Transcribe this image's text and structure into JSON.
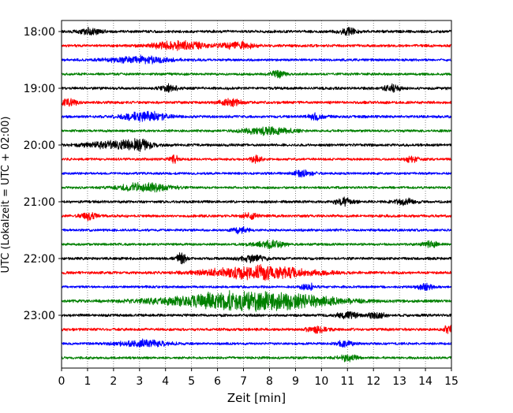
{
  "chart_data": {
    "type": "line",
    "chart_kind": "helicorder / seismogram drum plot",
    "title": "",
    "xlabel": "Zeit  [min]",
    "ylabel": "UTC (Lokalzeit = UTC + 02:00)",
    "xlim": [
      0,
      15
    ],
    "x_ticks": [
      0,
      1,
      2,
      3,
      4,
      5,
      6,
      7,
      8,
      9,
      10,
      11,
      12,
      13,
      14,
      15
    ],
    "x_tick_labels": [
      "0",
      "1",
      "2",
      "3",
      "4",
      "5",
      "6",
      "7",
      "8",
      "9",
      "10",
      "11",
      "12",
      "13",
      "14",
      "15"
    ],
    "y_tick_labels": [
      "18:00",
      "19:00",
      "20:00",
      "21:00",
      "22:00",
      "23:00"
    ],
    "grid": "vertical dotted lines at each minute",
    "trace_colors": [
      "#000000",
      "#ff0000",
      "#0000ff",
      "#008000"
    ],
    "series": [
      {
        "start": "18:00",
        "amplitude": 1.0,
        "bursts": [
          [
            1.1,
            0.4,
            1.5
          ],
          [
            11.0,
            0.4,
            1.5
          ]
        ]
      },
      {
        "start": "18:15",
        "amplitude": 1.0,
        "bursts": [
          [
            4.5,
            1.0,
            2.0
          ],
          [
            6.8,
            0.6,
            1.8
          ]
        ]
      },
      {
        "start": "18:30",
        "amplitude": 0.9,
        "bursts": [
          [
            3.0,
            1.2,
            1.6
          ]
        ]
      },
      {
        "start": "18:45",
        "amplitude": 0.9,
        "bursts": [
          [
            8.3,
            0.3,
            1.5
          ]
        ]
      },
      {
        "start": "19:00",
        "amplitude": 1.0,
        "bursts": [
          [
            4.1,
            0.3,
            1.8
          ],
          [
            12.7,
            0.3,
            1.8
          ]
        ]
      },
      {
        "start": "19:15",
        "amplitude": 1.0,
        "bursts": [
          [
            0.3,
            0.3,
            1.8
          ],
          [
            6.5,
            0.4,
            1.6
          ]
        ]
      },
      {
        "start": "19:30",
        "amplitude": 1.0,
        "bursts": [
          [
            3.2,
            0.8,
            2.2
          ],
          [
            9.8,
            0.3,
            1.4
          ]
        ]
      },
      {
        "start": "19:45",
        "amplitude": 0.9,
        "bursts": [
          [
            7.9,
            0.9,
            1.8
          ]
        ]
      },
      {
        "start": "20:00",
        "amplitude": 1.0,
        "bursts": [
          [
            2.2,
            1.2,
            1.8
          ],
          [
            3.0,
            0.4,
            1.6
          ]
        ]
      },
      {
        "start": "20:15",
        "amplitude": 0.9,
        "bursts": [
          [
            4.3,
            0.2,
            1.8
          ],
          [
            7.5,
            0.2,
            2.0
          ],
          [
            13.5,
            0.3,
            1.5
          ]
        ]
      },
      {
        "start": "20:30",
        "amplitude": 0.9,
        "bursts": [
          [
            9.3,
            0.4,
            1.4
          ]
        ]
      },
      {
        "start": "20:45",
        "amplitude": 0.9,
        "bursts": [
          [
            3.2,
            1.0,
            2.0
          ]
        ]
      },
      {
        "start": "21:00",
        "amplitude": 1.0,
        "bursts": [
          [
            10.9,
            0.4,
            1.5
          ],
          [
            13.2,
            0.4,
            1.5
          ]
        ]
      },
      {
        "start": "21:15",
        "amplitude": 1.0,
        "bursts": [
          [
            1.1,
            0.3,
            1.8
          ],
          [
            7.3,
            0.3,
            1.5
          ]
        ]
      },
      {
        "start": "21:30",
        "amplitude": 0.9,
        "bursts": [
          [
            6.9,
            0.3,
            1.5
          ]
        ]
      },
      {
        "start": "21:45",
        "amplitude": 0.9,
        "bursts": [
          [
            8.0,
            0.6,
            1.8
          ],
          [
            14.2,
            0.3,
            1.4
          ]
        ]
      },
      {
        "start": "22:00",
        "amplitude": 1.0,
        "bursts": [
          [
            4.6,
            0.2,
            2.5
          ],
          [
            7.4,
            0.5,
            1.5
          ]
        ]
      },
      {
        "start": "22:15",
        "amplitude": 1.0,
        "bursts": [
          [
            7.6,
            2.0,
            3.0
          ]
        ]
      },
      {
        "start": "22:30",
        "amplitude": 0.9,
        "bursts": [
          [
            9.5,
            0.3,
            1.4
          ],
          [
            14.0,
            0.3,
            1.4
          ]
        ]
      },
      {
        "start": "22:45",
        "amplitude": 1.0,
        "bursts": [
          [
            7.2,
            3.0,
            4.5
          ]
        ]
      },
      {
        "start": "23:00",
        "amplitude": 1.0,
        "bursts": [
          [
            11.0,
            0.4,
            1.5
          ],
          [
            12.1,
            0.3,
            1.5
          ]
        ]
      },
      {
        "start": "23:15",
        "amplitude": 1.0,
        "bursts": [
          [
            14.9,
            0.2,
            2.0
          ],
          [
            9.8,
            0.4,
            1.4
          ]
        ]
      },
      {
        "start": "23:30",
        "amplitude": 0.9,
        "bursts": [
          [
            3.1,
            0.9,
            1.8
          ],
          [
            10.9,
            0.3,
            1.5
          ]
        ]
      },
      {
        "start": "23:45",
        "amplitude": 0.9,
        "bursts": [
          [
            11.0,
            0.4,
            1.4
          ]
        ]
      }
    ]
  }
}
